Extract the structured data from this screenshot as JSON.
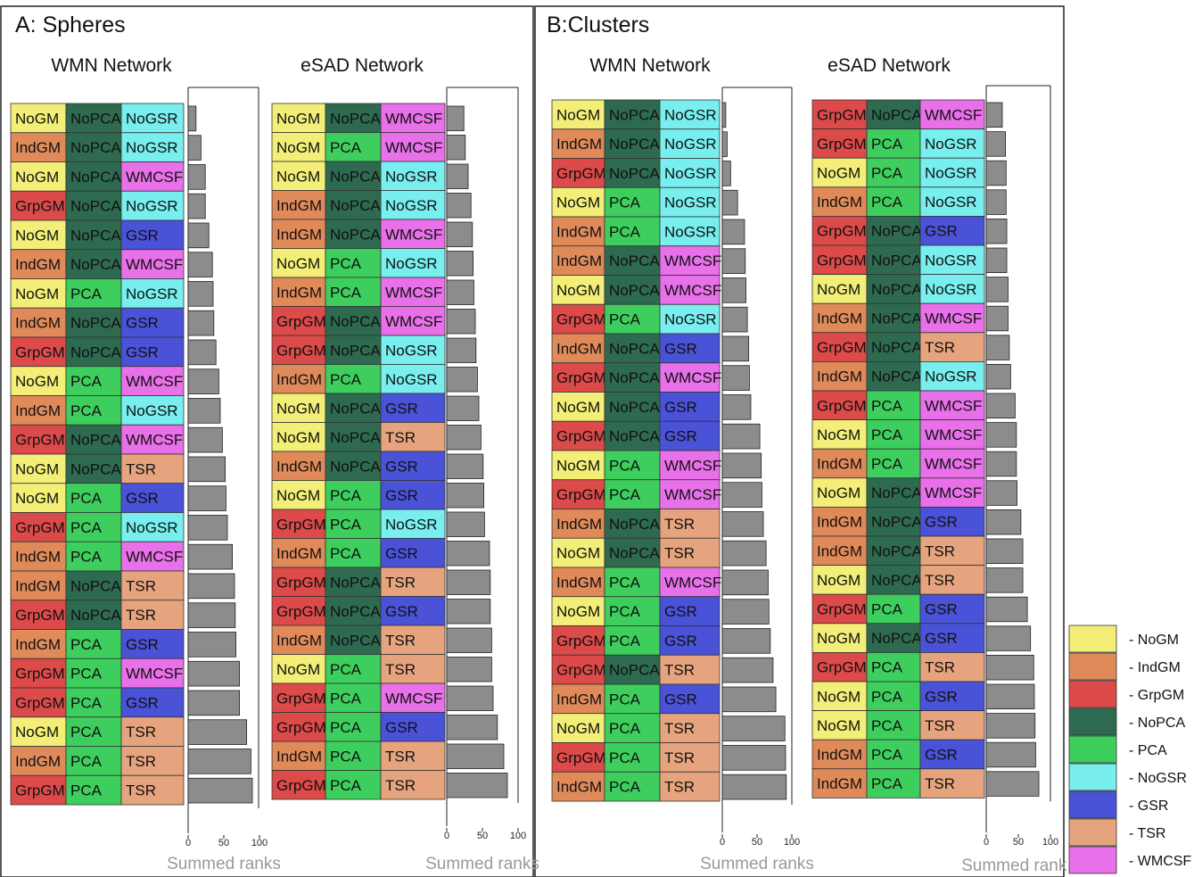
{
  "colors": {
    "NoGM": "#f2ee77",
    "IndGM": "#e08a5a",
    "GrpGM": "#dd4a4a",
    "NoPCA": "#2e6a50",
    "PCA": "#3ece5e",
    "NoGSR": "#78eeee",
    "GSR": "#4a52d8",
    "TSR": "#e6a47e",
    "WMCSF": "#e870e8",
    "bar": "#8c8c8c"
  },
  "legend": {
    "items": [
      "NoGM",
      "IndGM",
      "GrpGM",
      "NoPCA",
      "PCA",
      "NoGSR",
      "GSR",
      "TSR",
      "WMCSF"
    ],
    "labels": [
      "- NoGM",
      "- IndGM",
      "- GrpGM",
      "- NoPCA",
      "- PCA",
      "- NoGSR",
      "- GSR",
      "- TSR",
      "- WMCSF"
    ]
  },
  "chart_data": [
    {
      "type": "bar",
      "panel_title": "A: Spheres",
      "title": "WMN Network",
      "xlabel": "Summed ranks",
      "xlim": [
        0,
        100
      ],
      "xticks": [
        "0",
        "50",
        "100"
      ],
      "rows": [
        [
          "NoGM",
          "NoPCA",
          "NoGSR"
        ],
        [
          "IndGM",
          "NoPCA",
          "NoGSR"
        ],
        [
          "NoGM",
          "NoPCA",
          "WMCSF"
        ],
        [
          "GrpGM",
          "NoPCA",
          "NoGSR"
        ],
        [
          "NoGM",
          "NoPCA",
          "GSR"
        ],
        [
          "IndGM",
          "NoPCA",
          "WMCSF"
        ],
        [
          "NoGM",
          "PCA",
          "NoGSR"
        ],
        [
          "IndGM",
          "NoPCA",
          "GSR"
        ],
        [
          "GrpGM",
          "NoPCA",
          "GSR"
        ],
        [
          "NoGM",
          "PCA",
          "WMCSF"
        ],
        [
          "IndGM",
          "PCA",
          "NoGSR"
        ],
        [
          "GrpGM",
          "NoPCA",
          "WMCSF"
        ],
        [
          "NoGM",
          "NoPCA",
          "TSR"
        ],
        [
          "NoGM",
          "PCA",
          "GSR"
        ],
        [
          "GrpGM",
          "PCA",
          "NoGSR"
        ],
        [
          "IndGM",
          "PCA",
          "WMCSF"
        ],
        [
          "IndGM",
          "NoPCA",
          "TSR"
        ],
        [
          "GrpGM",
          "NoPCA",
          "TSR"
        ],
        [
          "IndGM",
          "PCA",
          "GSR"
        ],
        [
          "GrpGM",
          "PCA",
          "WMCSF"
        ],
        [
          "GrpGM",
          "PCA",
          "GSR"
        ],
        [
          "NoGM",
          "PCA",
          "TSR"
        ],
        [
          "IndGM",
          "PCA",
          "TSR"
        ],
        [
          "GrpGM",
          "PCA",
          "TSR"
        ]
      ],
      "values": [
        11,
        18,
        24,
        24,
        29,
        34,
        35,
        36,
        39,
        43,
        45,
        48,
        52,
        53,
        55,
        62,
        65,
        66,
        67,
        72,
        72,
        82,
        88,
        90
      ]
    },
    {
      "type": "bar",
      "panel_title": "",
      "title": "eSAD Network",
      "xlabel": "Summed ranks",
      "xlim": [
        0,
        100
      ],
      "xticks": [
        "0",
        "50",
        "100"
      ],
      "rows": [
        [
          "NoGM",
          "NoPCA",
          "WMCSF"
        ],
        [
          "NoGM",
          "PCA",
          "WMCSF"
        ],
        [
          "NoGM",
          "NoPCA",
          "NoGSR"
        ],
        [
          "IndGM",
          "NoPCA",
          "NoGSR"
        ],
        [
          "IndGM",
          "NoPCA",
          "WMCSF"
        ],
        [
          "NoGM",
          "PCA",
          "NoGSR"
        ],
        [
          "IndGM",
          "PCA",
          "WMCSF"
        ],
        [
          "GrpGM",
          "NoPCA",
          "WMCSF"
        ],
        [
          "GrpGM",
          "NoPCA",
          "NoGSR"
        ],
        [
          "IndGM",
          "PCA",
          "NoGSR"
        ],
        [
          "NoGM",
          "NoPCA",
          "GSR"
        ],
        [
          "NoGM",
          "NoPCA",
          "TSR"
        ],
        [
          "IndGM",
          "NoPCA",
          "GSR"
        ],
        [
          "NoGM",
          "PCA",
          "GSR"
        ],
        [
          "GrpGM",
          "PCA",
          "NoGSR"
        ],
        [
          "IndGM",
          "PCA",
          "GSR"
        ],
        [
          "GrpGM",
          "NoPCA",
          "TSR"
        ],
        [
          "GrpGM",
          "NoPCA",
          "GSR"
        ],
        [
          "IndGM",
          "NoPCA",
          "TSR"
        ],
        [
          "NoGM",
          "PCA",
          "TSR"
        ],
        [
          "GrpGM",
          "PCA",
          "WMCSF"
        ],
        [
          "GrpGM",
          "PCA",
          "GSR"
        ],
        [
          "IndGM",
          "PCA",
          "TSR"
        ],
        [
          "GrpGM",
          "PCA",
          "TSR"
        ]
      ],
      "values": [
        24,
        26,
        30,
        34,
        36,
        37,
        38,
        40,
        41,
        43,
        45,
        48,
        51,
        52,
        53,
        60,
        61,
        61,
        63,
        63,
        65,
        71,
        80,
        85
      ]
    },
    {
      "type": "bar",
      "panel_title": "B:Clusters",
      "title": "WMN Network",
      "xlabel": "Summed ranks",
      "xlim": [
        0,
        100
      ],
      "xticks": [
        "0",
        "50",
        "100"
      ],
      "rows": [
        [
          "NoGM",
          "NoPCA",
          "NoGSR"
        ],
        [
          "IndGM",
          "NoPCA",
          "NoGSR"
        ],
        [
          "GrpGM",
          "NoPCA",
          "NoGSR"
        ],
        [
          "NoGM",
          "PCA",
          "NoGSR"
        ],
        [
          "IndGM",
          "PCA",
          "NoGSR"
        ],
        [
          "IndGM",
          "NoPCA",
          "WMCSF"
        ],
        [
          "NoGM",
          "NoPCA",
          "WMCSF"
        ],
        [
          "GrpGM",
          "PCA",
          "NoGSR"
        ],
        [
          "IndGM",
          "NoPCA",
          "GSR"
        ],
        [
          "GrpGM",
          "NoPCA",
          "WMCSF"
        ],
        [
          "NoGM",
          "NoPCA",
          "GSR"
        ],
        [
          "GrpGM",
          "NoPCA",
          "GSR"
        ],
        [
          "NoGM",
          "PCA",
          "WMCSF"
        ],
        [
          "GrpGM",
          "PCA",
          "WMCSF"
        ],
        [
          "IndGM",
          "NoPCA",
          "TSR"
        ],
        [
          "NoGM",
          "NoPCA",
          "TSR"
        ],
        [
          "IndGM",
          "PCA",
          "WMCSF"
        ],
        [
          "NoGM",
          "PCA",
          "GSR"
        ],
        [
          "GrpGM",
          "PCA",
          "GSR"
        ],
        [
          "GrpGM",
          "NoPCA",
          "TSR"
        ],
        [
          "IndGM",
          "PCA",
          "GSR"
        ],
        [
          "NoGM",
          "PCA",
          "TSR"
        ],
        [
          "GrpGM",
          "PCA",
          "TSR"
        ],
        [
          "IndGM",
          "PCA",
          "TSR"
        ]
      ],
      "values": [
        5,
        7,
        12,
        22,
        32,
        33,
        34,
        36,
        38,
        39,
        41,
        54,
        56,
        57,
        59,
        63,
        66,
        67,
        69,
        73,
        77,
        90,
        91,
        92
      ]
    },
    {
      "type": "bar",
      "panel_title": "",
      "title": "eSAD Network",
      "xlabel": "Summed ranks",
      "xlim": [
        0,
        100
      ],
      "xticks": [
        "0",
        "50",
        "100"
      ],
      "rows": [
        [
          "GrpGM",
          "NoPCA",
          "WMCSF"
        ],
        [
          "GrpGM",
          "PCA",
          "NoGSR"
        ],
        [
          "NoGM",
          "PCA",
          "NoGSR"
        ],
        [
          "IndGM",
          "PCA",
          "NoGSR"
        ],
        [
          "GrpGM",
          "NoPCA",
          "GSR"
        ],
        [
          "GrpGM",
          "NoPCA",
          "NoGSR"
        ],
        [
          "NoGM",
          "NoPCA",
          "NoGSR"
        ],
        [
          "IndGM",
          "NoPCA",
          "WMCSF"
        ],
        [
          "GrpGM",
          "NoPCA",
          "TSR"
        ],
        [
          "IndGM",
          "NoPCA",
          "NoGSR"
        ],
        [
          "GrpGM",
          "PCA",
          "WMCSF"
        ],
        [
          "NoGM",
          "PCA",
          "WMCSF"
        ],
        [
          "IndGM",
          "PCA",
          "WMCSF"
        ],
        [
          "NoGM",
          "NoPCA",
          "WMCSF"
        ],
        [
          "IndGM",
          "NoPCA",
          "GSR"
        ],
        [
          "IndGM",
          "NoPCA",
          "TSR"
        ],
        [
          "NoGM",
          "NoPCA",
          "TSR"
        ],
        [
          "GrpGM",
          "PCA",
          "GSR"
        ],
        [
          "NoGM",
          "NoPCA",
          "GSR"
        ],
        [
          "GrpGM",
          "PCA",
          "TSR"
        ],
        [
          "NoGM",
          "PCA",
          "GSR"
        ],
        [
          "NoGM",
          "PCA",
          "TSR"
        ],
        [
          "IndGM",
          "PCA",
          "GSR"
        ],
        [
          "IndGM",
          "PCA",
          "TSR"
        ]
      ],
      "values": [
        25,
        30,
        31,
        31,
        32,
        32,
        34,
        34,
        36,
        38,
        45,
        47,
        47,
        48,
        54,
        57,
        57,
        64,
        69,
        74,
        75,
        76,
        77,
        82
      ]
    }
  ]
}
